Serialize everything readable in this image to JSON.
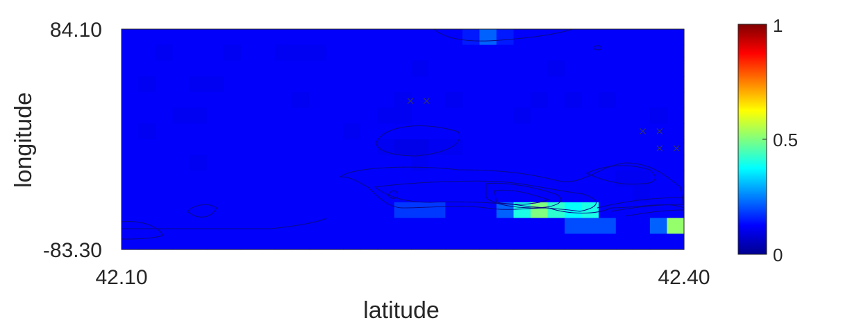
{
  "chart_data": {
    "type": "heatmap",
    "title": "",
    "xlabel": "latitude",
    "ylabel": "longitude",
    "xlim": [
      42.1,
      42.4
    ],
    "ylim": [
      -83.3,
      84.1
    ],
    "x_tick_labels": [
      "42.10",
      "42.40"
    ],
    "y_tick_labels": [
      "84.10",
      "-83.30"
    ],
    "colorbar": {
      "colormap": "jet",
      "range": [
        0,
        1
      ],
      "tick_labels": [
        "0",
        "0.5",
        "1"
      ]
    },
    "grid": false,
    "description_values": "grid rows from top (84.10) to bottom (-83.30), columns from left (42.10) to right (42.40)",
    "grid_values": [
      [
        0.12,
        0.12,
        0.12,
        0.12,
        0.12,
        0.12,
        0.12,
        0.12,
        0.12,
        0.12,
        0.12,
        0.12,
        0.12,
        0.12,
        0.12,
        0.12,
        0.12,
        0.12,
        0.12,
        0.12,
        0.15,
        0.22,
        0.15,
        0.12,
        0.12,
        0.12,
        0.12,
        0.12,
        0.12,
        0.12,
        0.12,
        0.12,
        0.12
      ],
      [
        0.12,
        0.12,
        0.11,
        0.12,
        0.12,
        0.12,
        0.11,
        0.12,
        0.12,
        0.11,
        0.11,
        0.11,
        0.12,
        0.12,
        0.12,
        0.12,
        0.12,
        0.12,
        0.12,
        0.12,
        0.12,
        0.12,
        0.12,
        0.12,
        0.12,
        0.12,
        0.12,
        0.12,
        0.12,
        0.12,
        0.12,
        0.12,
        0.12
      ],
      [
        0.12,
        0.12,
        0.12,
        0.12,
        0.12,
        0.12,
        0.12,
        0.12,
        0.12,
        0.12,
        0.12,
        0.12,
        0.12,
        0.12,
        0.12,
        0.12,
        0.12,
        0.11,
        0.12,
        0.12,
        0.12,
        0.12,
        0.12,
        0.12,
        0.12,
        0.11,
        0.12,
        0.12,
        0.12,
        0.12,
        0.12,
        0.12,
        0.12
      ],
      [
        0.12,
        0.11,
        0.12,
        0.12,
        0.11,
        0.11,
        0.12,
        0.12,
        0.12,
        0.12,
        0.12,
        0.12,
        0.12,
        0.12,
        0.12,
        0.12,
        0.12,
        0.12,
        0.12,
        0.12,
        0.12,
        0.12,
        0.12,
        0.12,
        0.12,
        0.12,
        0.12,
        0.12,
        0.12,
        0.12,
        0.12,
        0.12,
        0.12
      ],
      [
        0.12,
        0.12,
        0.12,
        0.12,
        0.12,
        0.12,
        0.12,
        0.12,
        0.12,
        0.12,
        0.11,
        0.12,
        0.12,
        0.12,
        0.12,
        0.12,
        0.11,
        0.12,
        0.12,
        0.11,
        0.12,
        0.12,
        0.12,
        0.12,
        0.11,
        0.12,
        0.11,
        0.12,
        0.11,
        0.12,
        0.12,
        0.12,
        0.12
      ],
      [
        0.12,
        0.12,
        0.12,
        0.11,
        0.11,
        0.12,
        0.12,
        0.12,
        0.12,
        0.12,
        0.12,
        0.12,
        0.12,
        0.12,
        0.12,
        0.11,
        0.11,
        0.12,
        0.12,
        0.12,
        0.12,
        0.12,
        0.12,
        0.11,
        0.12,
        0.12,
        0.12,
        0.12,
        0.12,
        0.12,
        0.12,
        0.11,
        0.12
      ],
      [
        0.12,
        0.11,
        0.12,
        0.12,
        0.12,
        0.12,
        0.12,
        0.12,
        0.12,
        0.12,
        0.12,
        0.12,
        0.12,
        0.11,
        0.12,
        0.12,
        0.12,
        0.12,
        0.12,
        0.12,
        0.12,
        0.12,
        0.12,
        0.12,
        0.12,
        0.12,
        0.12,
        0.12,
        0.12,
        0.12,
        0.12,
        0.12,
        0.12
      ],
      [
        0.12,
        0.12,
        0.12,
        0.12,
        0.12,
        0.12,
        0.12,
        0.12,
        0.12,
        0.12,
        0.12,
        0.12,
        0.12,
        0.12,
        0.12,
        0.11,
        0.1,
        0.1,
        0.11,
        0.11,
        0.12,
        0.12,
        0.12,
        0.12,
        0.12,
        0.12,
        0.12,
        0.12,
        0.12,
        0.12,
        0.12,
        0.12,
        0.12
      ],
      [
        0.12,
        0.12,
        0.12,
        0.12,
        0.11,
        0.12,
        0.12,
        0.12,
        0.12,
        0.12,
        0.12,
        0.12,
        0.12,
        0.12,
        0.12,
        0.12,
        0.12,
        0.11,
        0.12,
        0.12,
        0.12,
        0.12,
        0.12,
        0.12,
        0.12,
        0.12,
        0.12,
        0.12,
        0.12,
        0.12,
        0.12,
        0.12,
        0.12
      ],
      [
        0.12,
        0.12,
        0.12,
        0.12,
        0.12,
        0.12,
        0.12,
        0.12,
        0.12,
        0.12,
        0.12,
        0.12,
        0.12,
        0.12,
        0.12,
        0.12,
        0.12,
        0.12,
        0.12,
        0.12,
        0.12,
        0.12,
        0.12,
        0.12,
        0.12,
        0.12,
        0.12,
        0.12,
        0.12,
        0.11,
        0.11,
        0.12,
        0.12
      ],
      [
        0.12,
        0.12,
        0.12,
        0.12,
        0.12,
        0.12,
        0.12,
        0.12,
        0.12,
        0.12,
        0.12,
        0.12,
        0.12,
        0.12,
        0.12,
        0.12,
        0.12,
        0.12,
        0.12,
        0.12,
        0.12,
        0.12,
        0.12,
        0.12,
        0.12,
        0.12,
        0.12,
        0.12,
        0.12,
        0.12,
        0.11,
        0.12,
        0.12
      ],
      [
        0.12,
        0.12,
        0.12,
        0.12,
        0.12,
        0.12,
        0.12,
        0.12,
        0.12,
        0.12,
        0.12,
        0.12,
        0.12,
        0.12,
        0.12,
        0.12,
        0.18,
        0.18,
        0.18,
        0.12,
        0.12,
        0.12,
        0.22,
        0.4,
        0.5,
        0.42,
        0.38,
        0.4,
        0.12,
        0.12,
        0.12,
        0.12,
        0.12
      ],
      [
        0.12,
        0.12,
        0.12,
        0.12,
        0.12,
        0.12,
        0.12,
        0.12,
        0.12,
        0.12,
        0.12,
        0.12,
        0.12,
        0.12,
        0.12,
        0.12,
        0.12,
        0.12,
        0.12,
        0.12,
        0.12,
        0.12,
        0.12,
        0.12,
        0.12,
        0.12,
        0.2,
        0.2,
        0.2,
        0.12,
        0.12,
        0.22,
        0.52
      ],
      [
        0.12,
        0.12,
        0.12,
        0.12,
        0.12,
        0.12,
        0.12,
        0.12,
        0.12,
        0.12,
        0.12,
        0.12,
        0.12,
        0.12,
        0.12,
        0.12,
        0.12,
        0.12,
        0.12,
        0.12,
        0.12,
        0.12,
        0.12,
        0.12,
        0.12,
        0.12,
        0.12,
        0.12,
        0.12,
        0.12,
        0.12,
        0.12,
        0.12
      ]
    ],
    "markers": [
      {
        "x": 42.2541,
        "y": 29.5
      },
      {
        "x": 42.2627,
        "y": 29.5
      },
      {
        "x": 42.378,
        "y": 6.5
      },
      {
        "x": 42.387,
        "y": 6.5
      },
      {
        "x": 42.387,
        "y": -6.5
      },
      {
        "x": 42.396,
        "y": -6.5
      }
    ]
  }
}
